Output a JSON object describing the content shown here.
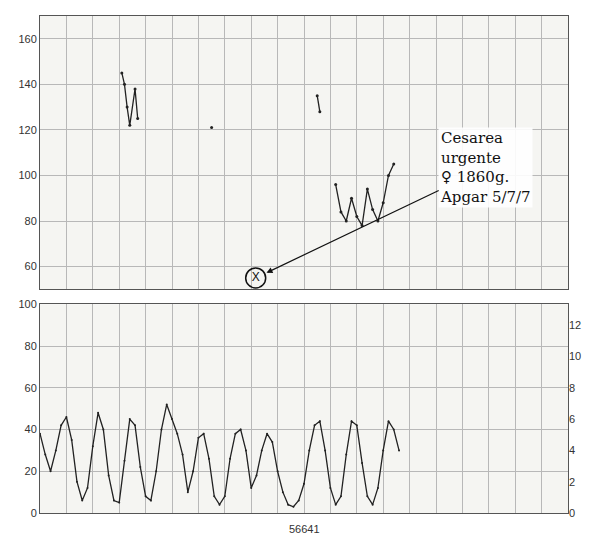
{
  "chart_data": [
    {
      "type": "line",
      "x": [
        3.1,
        3.2,
        3.3,
        3.4,
        3.6,
        3.7,
        3.8,
        6.5,
        6.6,
        10.5,
        10.6,
        10.7,
        11.2,
        11.4,
        11.6,
        11.8,
        12.0,
        12.2,
        12.4,
        12.6,
        12.8,
        13.0,
        13.2,
        13.4
      ],
      "values": [
        145,
        140,
        130,
        122,
        138,
        125,
        null,
        121,
        null,
        135,
        128,
        null,
        96,
        84,
        80,
        90,
        82,
        78,
        94,
        85,
        80,
        88,
        100,
        105
      ],
      "color": "#222222",
      "xlim": [
        0,
        20
      ],
      "xticks": [
        0,
        1,
        2,
        3,
        4,
        5,
        6,
        7,
        8,
        9,
        10,
        11,
        12,
        13,
        14,
        15,
        16,
        17,
        18,
        19,
        20
      ],
      "ylim": [
        50,
        170
      ],
      "yticks": [
        60,
        80,
        100,
        120,
        140,
        160
      ],
      "grid": true,
      "tick_labels": "y",
      "annotations": [
        {
          "text": "X",
          "x": 8.17,
          "y": 55
        },
        {
          "text": [
            "Cesarea",
            "urgente",
            "♀ 1860g.",
            "Apgar 5/7/7"
          ]
        }
      ]
    },
    {
      "type": "line",
      "x": [
        0,
        0.2,
        0.4,
        0.6,
        0.8,
        1.0,
        1.2,
        1.4,
        1.6,
        1.8,
        2.0,
        2.2,
        2.4,
        2.6,
        2.8,
        3.0,
        3.2,
        3.4,
        3.6,
        3.8,
        4.0,
        4.2,
        4.4,
        4.6,
        4.8,
        5.0,
        5.2,
        5.4,
        5.6,
        5.8,
        6.0,
        6.2,
        6.4,
        6.6,
        6.8,
        7.0,
        7.2,
        7.4,
        7.6,
        7.8,
        8.0,
        8.2,
        8.4,
        8.6,
        8.8,
        9.0,
        9.2,
        9.4,
        9.6,
        9.8,
        10.0,
        10.2,
        10.4,
        10.6,
        10.8,
        11.0,
        11.2,
        11.4,
        11.6,
        11.8,
        12.0,
        12.2,
        12.4,
        12.6,
        12.8,
        13.0,
        13.2,
        13.4,
        13.6
      ],
      "values": [
        38,
        28,
        20,
        30,
        42,
        46,
        35,
        15,
        6,
        12,
        32,
        48,
        40,
        18,
        6,
        5,
        25,
        45,
        42,
        22,
        8,
        6,
        20,
        40,
        52,
        45,
        38,
        28,
        10,
        20,
        36,
        38,
        26,
        8,
        4,
        8,
        26,
        38,
        40,
        30,
        12,
        18,
        30,
        38,
        34,
        20,
        10,
        4,
        3,
        6,
        14,
        30,
        42,
        44,
        30,
        12,
        4,
        8,
        28,
        44,
        42,
        24,
        8,
        4,
        12,
        30,
        44,
        40,
        30
      ],
      "color": "#222222",
      "xlim": [
        0,
        20
      ],
      "xticks": [
        0,
        1,
        2,
        3,
        4,
        5,
        6,
        7,
        8,
        9,
        10,
        11,
        12,
        13,
        14,
        15,
        16,
        17,
        18,
        19,
        20
      ],
      "ylim": [
        0,
        100
      ],
      "yticks": [
        0,
        20,
        40,
        60,
        80,
        100
      ],
      "y2lim": [
        0,
        13.33
      ],
      "y2ticks": [
        0,
        2,
        4,
        6,
        8,
        10,
        12
      ],
      "grid": true,
      "tick_labels": "y",
      "annotations": [
        {
          "text": "56641"
        }
      ]
    }
  ]
}
